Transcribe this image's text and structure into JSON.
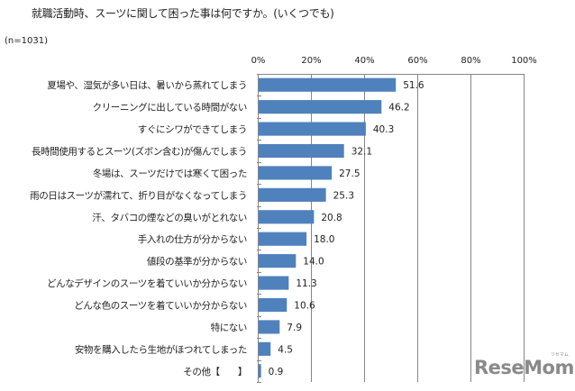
{
  "header": {
    "title": "就職活動時、スーツに関して困った事は何ですか。(いくつでも)",
    "sample_size": "(n=1031)"
  },
  "logo": {
    "text": "ReseMom",
    "ruby": "リセマム"
  },
  "chart_data": {
    "type": "bar",
    "orientation": "horizontal",
    "title": "就職活動時、スーツに関して困った事は何ですか。(いくつでも)",
    "subtitle": "(n=1031)",
    "xlabel": "",
    "ylabel": "",
    "xlim": [
      0,
      100
    ],
    "x_ticks": [
      "0%",
      "20%",
      "40%",
      "60%",
      "80%",
      "100%"
    ],
    "x_tick_values": [
      0,
      20,
      40,
      60,
      80,
      100
    ],
    "x_axis_position": "top",
    "grid": true,
    "legend": null,
    "bar_color": "#4f81bd",
    "categories": [
      "夏場や、湿気が多い日は、暑いから蒸れてしまう",
      "クリーニングに出している時間がない",
      "すぐにシワができてしまう",
      "長時間使用するとスーツ(ズボン含む)が傷んでしまう",
      "冬場は、スーツだけでは寒くて困った",
      "雨の日はスーツが濡れて、折り目がなくなってしまう",
      "汗、タバコの煙などの臭いがとれない",
      "手入れの仕方が分からない",
      "値段の基準が分からない",
      "どんなデザインのスーツを着ていいか分からない",
      "どんな色のスーツを着ていいか分からない",
      "特にない",
      "安物を購入したら生地がほつれてしまった",
      "その他【　　】"
    ],
    "values": [
      51.6,
      46.2,
      40.3,
      32.1,
      27.5,
      25.3,
      20.8,
      18.0,
      14.0,
      11.3,
      10.6,
      7.9,
      4.5,
      0.9
    ],
    "value_labels": [
      "51.6",
      "46.2",
      "40.3",
      "32.1",
      "27.5",
      "25.3",
      "20.8",
      "18.0",
      "14.0",
      "11.3",
      "10.6",
      "7.9",
      "4.5",
      "0.9"
    ]
  }
}
